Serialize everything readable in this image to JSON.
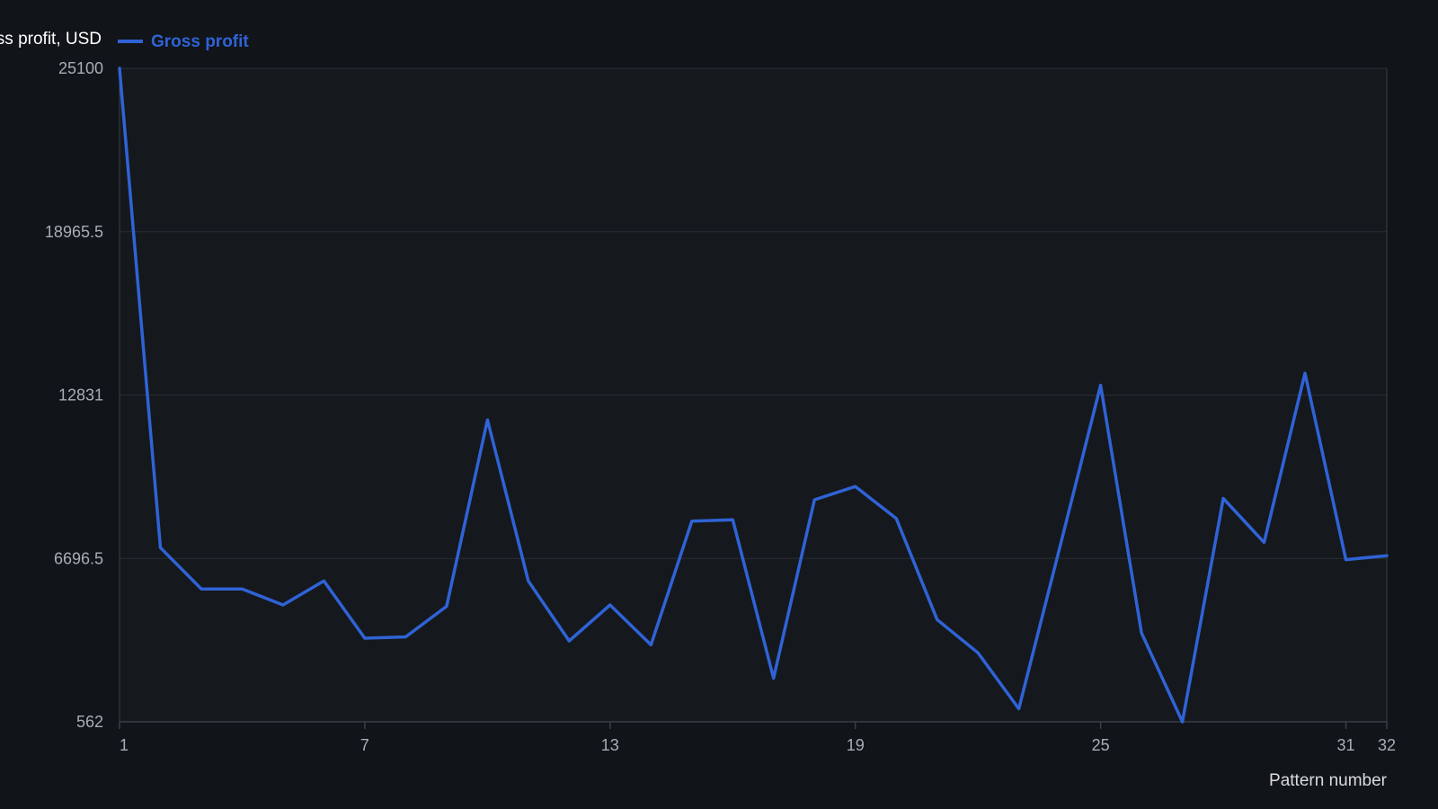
{
  "chart_data": {
    "type": "line",
    "xlabel": "Pattern number",
    "ylabel": "Gross profit, USD",
    "legend_position": "top-left",
    "grid": true,
    "xlim": [
      1,
      32
    ],
    "ylim": [
      562,
      25100
    ],
    "x_ticks": [
      1,
      7,
      13,
      19,
      25,
      31,
      32
    ],
    "y_ticks": [
      562,
      6696.5,
      12831,
      18965.5,
      25100
    ],
    "x_tick_labels": [
      "1",
      "7",
      "13",
      "19",
      "25",
      "31",
      "32"
    ],
    "y_tick_labels": [
      "562",
      "6696.5",
      "12831",
      "18965.5",
      "25100"
    ],
    "x": [
      1,
      2,
      3,
      4,
      5,
      6,
      7,
      8,
      9,
      10,
      11,
      12,
      13,
      14,
      15,
      16,
      17,
      18,
      19,
      20,
      21,
      22,
      23,
      24,
      25,
      26,
      27,
      28,
      29,
      30,
      31,
      32
    ],
    "series": [
      {
        "name": "Gross profit",
        "color": "#2f63d6",
        "values": [
          25100,
          7100,
          5550,
          5550,
          4950,
          5850,
          3700,
          3750,
          4900,
          11900,
          5850,
          3600,
          4950,
          3450,
          8100,
          8150,
          2200,
          8900,
          9400,
          8200,
          4400,
          3150,
          1050,
          7100,
          13200,
          3900,
          562,
          8950,
          7300,
          13650,
          6650,
          6800
        ]
      }
    ],
    "colors": {
      "background": "#111418",
      "plot_background": "#15181d",
      "grid": "#2a2e35",
      "axis": "#3a3f47",
      "line": "#2f63d6"
    }
  }
}
